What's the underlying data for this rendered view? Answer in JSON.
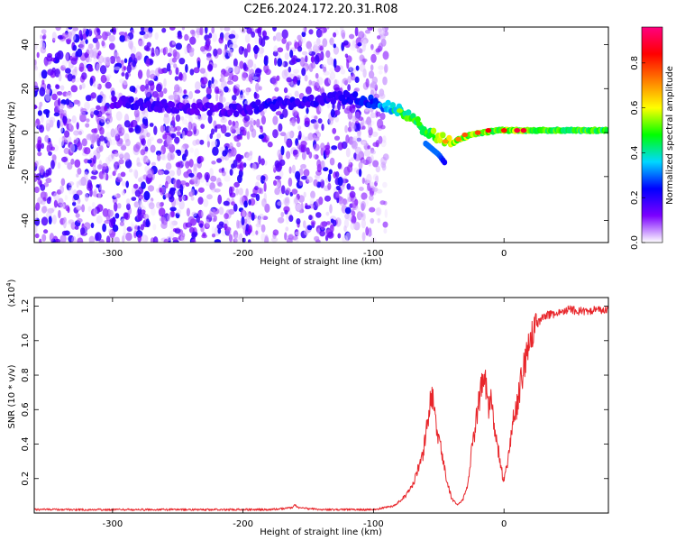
{
  "title": "C2E6.2024.172.20.31.R08",
  "chart_data": [
    {
      "type": "heatmap",
      "xlabel": "Height of straight line (km)",
      "ylabel": "Frequency (Hz)",
      "xlim": [
        -360,
        80
      ],
      "ylim": [
        -50,
        48
      ],
      "xticks": [
        -300,
        -200,
        -100,
        0
      ],
      "yticks": [
        -40,
        -20,
        0,
        20,
        40
      ],
      "colorbar": {
        "label": "Normalized spectral amplitude",
        "range": [
          0.0,
          0.96
        ],
        "ticks": [
          0.0,
          0.2,
          0.4,
          0.6,
          0.8
        ],
        "colors": [
          "#ffffff",
          "#7b00ff",
          "#0000ff",
          "#00d8ff",
          "#00ff00",
          "#ffff00",
          "#ff7f00",
          "#ff0000",
          "#ff0080"
        ]
      },
      "noise_region_x": [
        -360,
        -90
      ],
      "trace": [
        {
          "x": -300,
          "y": 14,
          "amp": 0.16
        },
        {
          "x": -280,
          "y": 13,
          "amp": 0.2
        },
        {
          "x": -240,
          "y": 11,
          "amp": 0.16
        },
        {
          "x": -200,
          "y": 10,
          "amp": 0.18
        },
        {
          "x": -180,
          "y": 13,
          "amp": 0.22
        },
        {
          "x": -160,
          "y": 13,
          "amp": 0.2
        },
        {
          "x": -140,
          "y": 15,
          "amp": 0.2
        },
        {
          "x": -120,
          "y": 16,
          "amp": 0.22
        },
        {
          "x": -100,
          "y": 14,
          "amp": 0.28
        },
        {
          "x": -90,
          "y": 12,
          "amp": 0.35
        },
        {
          "x": -80,
          "y": 10,
          "amp": 0.45
        },
        {
          "x": -70,
          "y": 6,
          "amp": 0.5
        },
        {
          "x": -60,
          "y": 1,
          "amp": 0.5
        },
        {
          "x": -50,
          "y": -2,
          "amp": 0.55
        },
        {
          "x": -40,
          "y": -5,
          "amp": 0.6
        },
        {
          "x": -35,
          "y": -3,
          "amp": 0.6
        },
        {
          "x": -25,
          "y": -1,
          "amp": 0.55
        },
        {
          "x": -15,
          "y": 0,
          "amp": 0.55
        },
        {
          "x": -5,
          "y": 1,
          "amp": 0.55
        },
        {
          "x": 5,
          "y": 1,
          "amp": 0.55
        },
        {
          "x": 20,
          "y": 1,
          "amp": 0.5
        },
        {
          "x": 40,
          "y": 1,
          "amp": 0.5
        },
        {
          "x": 60,
          "y": 1,
          "amp": 0.5
        },
        {
          "x": 80,
          "y": 1,
          "amp": 0.5
        }
      ],
      "branch": [
        {
          "x": -60,
          "y": -5,
          "amp": 0.3
        },
        {
          "x": -50,
          "y": -10,
          "amp": 0.3
        },
        {
          "x": -45,
          "y": -14,
          "amp": 0.22
        }
      ],
      "peaks": [
        {
          "x": -80,
          "y": 10,
          "amp": 0.55
        },
        {
          "x": -65,
          "y": 4,
          "amp": 0.5
        },
        {
          "x": -45,
          "y": -4,
          "amp": 0.7
        },
        {
          "x": -35,
          "y": -3,
          "amp": 0.72
        },
        {
          "x": -20,
          "y": 0,
          "amp": 0.78
        },
        {
          "x": -12,
          "y": 1,
          "amp": 0.85
        },
        {
          "x": 0,
          "y": 1,
          "amp": 0.82
        },
        {
          "x": 10,
          "y": 1,
          "amp": 0.9
        },
        {
          "x": 15,
          "y": 1,
          "amp": 0.88
        },
        {
          "x": -30,
          "y": -1,
          "amp": 0.76
        }
      ]
    },
    {
      "type": "line",
      "xlabel": "Height of straight line (km)",
      "ylabel": "SNR (10 * v/v)",
      "yscale_label": "(x10",
      "yscale_exponent": "4",
      "yscale_close": ")",
      "xlim": [
        -360,
        80
      ],
      "ylim": [
        0,
        1.25
      ],
      "xticks": [
        -300,
        -200,
        -100,
        0
      ],
      "yticks": [
        0.2,
        0.4,
        0.6,
        0.8,
        1.0,
        1.2
      ],
      "color": "#e8262b",
      "x": [
        -360,
        -340,
        -300,
        -260,
        -230,
        -200,
        -180,
        -162,
        -160,
        -158,
        -140,
        -120,
        -100,
        -85,
        -75,
        -68,
        -62,
        -58,
        -56,
        -54,
        -52,
        -50,
        -48,
        -46,
        -44,
        -40,
        -36,
        -32,
        -28,
        -25,
        -22,
        -20,
        -18,
        -15,
        -12,
        -10,
        -8,
        -6,
        -4,
        -2,
        0,
        3,
        6,
        10,
        14,
        18,
        22,
        26,
        30,
        40,
        50,
        60,
        70,
        80
      ],
      "values": [
        0.02,
        0.02,
        0.02,
        0.02,
        0.02,
        0.02,
        0.02,
        0.03,
        0.05,
        0.03,
        0.02,
        0.02,
        0.02,
        0.04,
        0.1,
        0.2,
        0.35,
        0.55,
        0.7,
        0.62,
        0.5,
        0.42,
        0.36,
        0.3,
        0.2,
        0.08,
        0.05,
        0.07,
        0.15,
        0.35,
        0.5,
        0.62,
        0.7,
        0.8,
        0.6,
        0.72,
        0.5,
        0.45,
        0.35,
        0.25,
        0.18,
        0.3,
        0.5,
        0.62,
        0.8,
        0.95,
        1.05,
        1.1,
        1.14,
        1.16,
        1.18,
        1.17,
        1.18,
        1.18
      ]
    }
  ]
}
